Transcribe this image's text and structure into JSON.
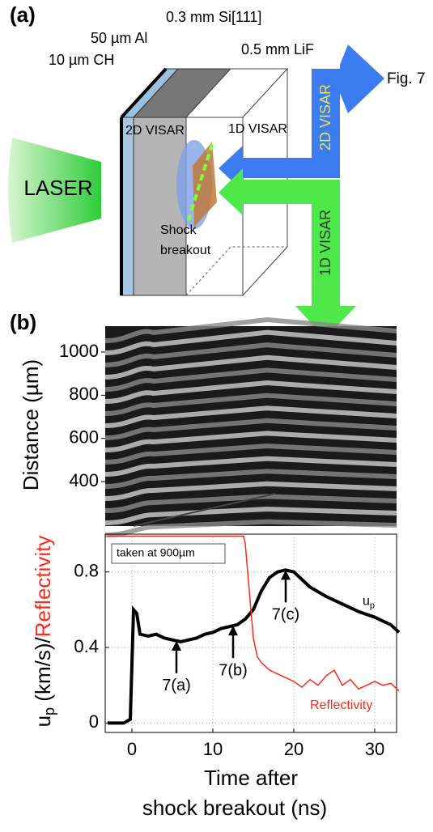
{
  "diagram": {
    "panel_a": "(a)",
    "panel_b": "(b)",
    "layers": [
      "10 µm CH",
      "50 µm Al",
      "0.3 mm Si[111]",
      "0.5 mm LiF"
    ],
    "laser": "LASER",
    "fig_ref": "Fig. 7",
    "probe_labels": {
      "one_d": "1D VISAR",
      "two_d": "2D VISAR"
    },
    "beam_labels": {
      "two_d": "2D VISAR",
      "one_d": "1D VISAR"
    },
    "shock": [
      "Shock",
      "breakout"
    ]
  },
  "chart_data": [
    {
      "type": "image",
      "ylabel": "Distance (µm)",
      "ylim": [
        194,
        1120
      ],
      "yticks": [
        400,
        600,
        800,
        1000
      ]
    },
    {
      "type": "line",
      "ylabel": [
        "u",
        "p",
        " (km/s)/",
        "Reflectivity"
      ],
      "xlabel": [
        "Time after",
        "shock breakout (ns)"
      ],
      "note": "taken at 900µm",
      "xlim": [
        -3.3,
        32.7
      ],
      "ylim": [
        -0.05,
        1.0
      ],
      "xticks": [
        0,
        10,
        20,
        30
      ],
      "yticks": [
        0,
        0.4,
        0.8
      ],
      "grid": true,
      "series": [
        {
          "name": [
            "u",
            "p"
          ],
          "color": "#000000",
          "x": [
            -3,
            -1,
            -0.2,
            0.2,
            0.6,
            1,
            2,
            3,
            4,
            5,
            6,
            7,
            8,
            9,
            10,
            11,
            12,
            13,
            14,
            15,
            16,
            17,
            18,
            19,
            20,
            21,
            22,
            24,
            26,
            28,
            30,
            32,
            33
          ],
          "values": [
            0.0,
            0.0,
            0.02,
            0.6,
            0.58,
            0.47,
            0.46,
            0.47,
            0.45,
            0.44,
            0.43,
            0.44,
            0.45,
            0.47,
            0.48,
            0.5,
            0.51,
            0.52,
            0.55,
            0.6,
            0.7,
            0.77,
            0.8,
            0.81,
            0.8,
            0.76,
            0.72,
            0.67,
            0.63,
            0.59,
            0.56,
            0.52,
            0.48
          ]
        },
        {
          "name": "Reflectivity",
          "color": "#ff2a1a",
          "x": [
            -3,
            13.8,
            14,
            14.5,
            15,
            15.5,
            16,
            17,
            18,
            19,
            20,
            21,
            22,
            23,
            24,
            25,
            26,
            27,
            28,
            29,
            30,
            31,
            32,
            33
          ],
          "values": [
            0.99,
            0.99,
            0.95,
            0.7,
            0.45,
            0.35,
            0.32,
            0.28,
            0.26,
            0.24,
            0.22,
            0.19,
            0.23,
            0.2,
            0.25,
            0.28,
            0.2,
            0.23,
            0.18,
            0.2,
            0.22,
            0.2,
            0.21,
            0.17
          ]
        }
      ],
      "annotations": [
        {
          "text": "7(a)",
          "x": 5.5
        },
        {
          "text": "7(b)",
          "x": 12.5
        },
        {
          "text": "7(c)",
          "x": 19
        }
      ]
    }
  ]
}
